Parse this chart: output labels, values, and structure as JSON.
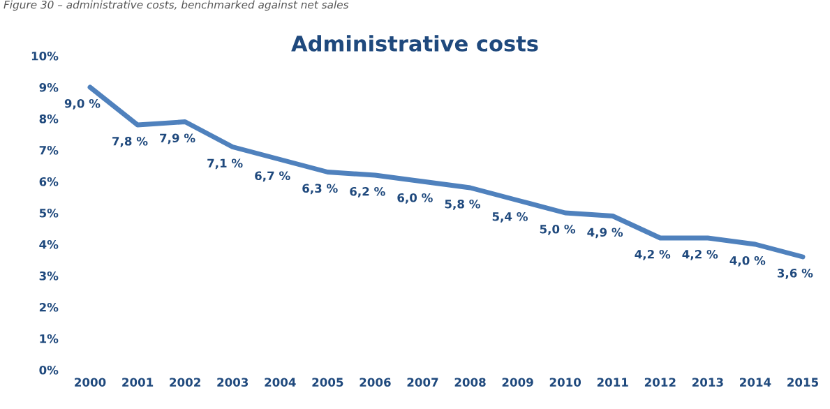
{
  "chart_data": {
    "type": "line",
    "title": "Administrative costs",
    "annotations": [
      "Figure 30 – administrative costs, benchmarked against net sales"
    ],
    "categories": [
      "2000",
      "2001",
      "2002",
      "2003",
      "2004",
      "2005",
      "2006",
      "2007",
      "2008",
      "2009",
      "2010",
      "2011",
      "2012",
      "2013",
      "2014",
      "2015"
    ],
    "series": [
      {
        "color": "#4f81bd",
        "values": [
          9.0,
          7.8,
          7.9,
          7.1,
          6.7,
          6.3,
          6.2,
          6.0,
          5.8,
          5.4,
          5.0,
          4.9,
          4.2,
          4.2,
          4.0,
          3.6
        ],
        "value_labels": [
          "9,0 %",
          "7,8 %",
          "7,9 %",
          "7,1 %",
          "6,7 %",
          "6,3 %",
          "6,2 %",
          "6,0 %",
          "5,8 %",
          "5,4 %",
          "5,0 %",
          "4,9 %",
          "4,2 %",
          "4,2 %",
          "4,0 %",
          "3,6 %"
        ]
      }
    ],
    "ylim": [
      0,
      10
    ],
    "yticks": [
      {
        "value": 0,
        "label": "0%"
      },
      {
        "value": 1,
        "label": "1%"
      },
      {
        "value": 2,
        "label": "2%"
      },
      {
        "value": 3,
        "label": "3%"
      },
      {
        "value": 4,
        "label": "4%"
      },
      {
        "value": 5,
        "label": "5%"
      },
      {
        "value": 6,
        "label": "6%"
      },
      {
        "value": 7,
        "label": "7%"
      },
      {
        "value": 8,
        "label": "8%"
      },
      {
        "value": 9,
        "label": "9%"
      },
      {
        "value": 10,
        "label": "10%"
      }
    ],
    "grid": false,
    "legend": false,
    "marker": "none",
    "line_style": "solid"
  }
}
